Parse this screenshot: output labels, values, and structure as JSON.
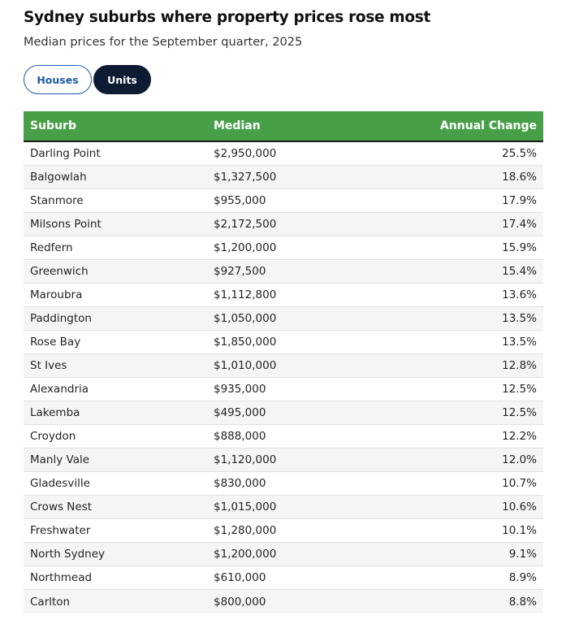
{
  "title": "Sydney suburbs where property prices rose most",
  "subtitle": "Median prices for the September quarter, 2025",
  "toggle": {
    "houses_label": "Houses",
    "units_label": "Units",
    "selected": "Units"
  },
  "colors": {
    "header_bg": "#47a048",
    "active_pill": "#0d1b33",
    "inactive_pill_text": "#1f5aa6"
  },
  "table": {
    "headers": [
      "Suburb",
      "Median",
      "Annual Change"
    ],
    "rows": [
      [
        "Darling Point",
        "$2,950,000",
        "25.5%"
      ],
      [
        "Balgowlah",
        "$1,327,500",
        "18.6%"
      ],
      [
        "Stanmore",
        "$955,000",
        "17.9%"
      ],
      [
        "Milsons Point",
        "$2,172,500",
        "17.4%"
      ],
      [
        "Redfern",
        "$1,200,000",
        "15.9%"
      ],
      [
        "Greenwich",
        "$927,500",
        "15.4%"
      ],
      [
        "Maroubra",
        "$1,112,800",
        "13.6%"
      ],
      [
        "Paddington",
        "$1,050,000",
        "13.5%"
      ],
      [
        "Rose Bay",
        "$1,850,000",
        "13.5%"
      ],
      [
        "St Ives",
        "$1,010,000",
        "12.8%"
      ],
      [
        "Alexandria",
        "$935,000",
        "12.5%"
      ],
      [
        "Lakemba",
        "$495,000",
        "12.5%"
      ],
      [
        "Croydon",
        "$888,000",
        "12.2%"
      ],
      [
        "Manly Vale",
        "$1,120,000",
        "12.0%"
      ],
      [
        "Gladesville",
        "$830,000",
        "10.7%"
      ],
      [
        "Crows Nest",
        "$1,015,000",
        "10.6%"
      ],
      [
        "Freshwater",
        "$1,280,000",
        "10.1%"
      ],
      [
        "North Sydney",
        "$1,200,000",
        "9.1%"
      ],
      [
        "Northmead",
        "$610,000",
        "8.9%"
      ],
      [
        "Carlton",
        "$800,000",
        "8.8%"
      ]
    ]
  }
}
